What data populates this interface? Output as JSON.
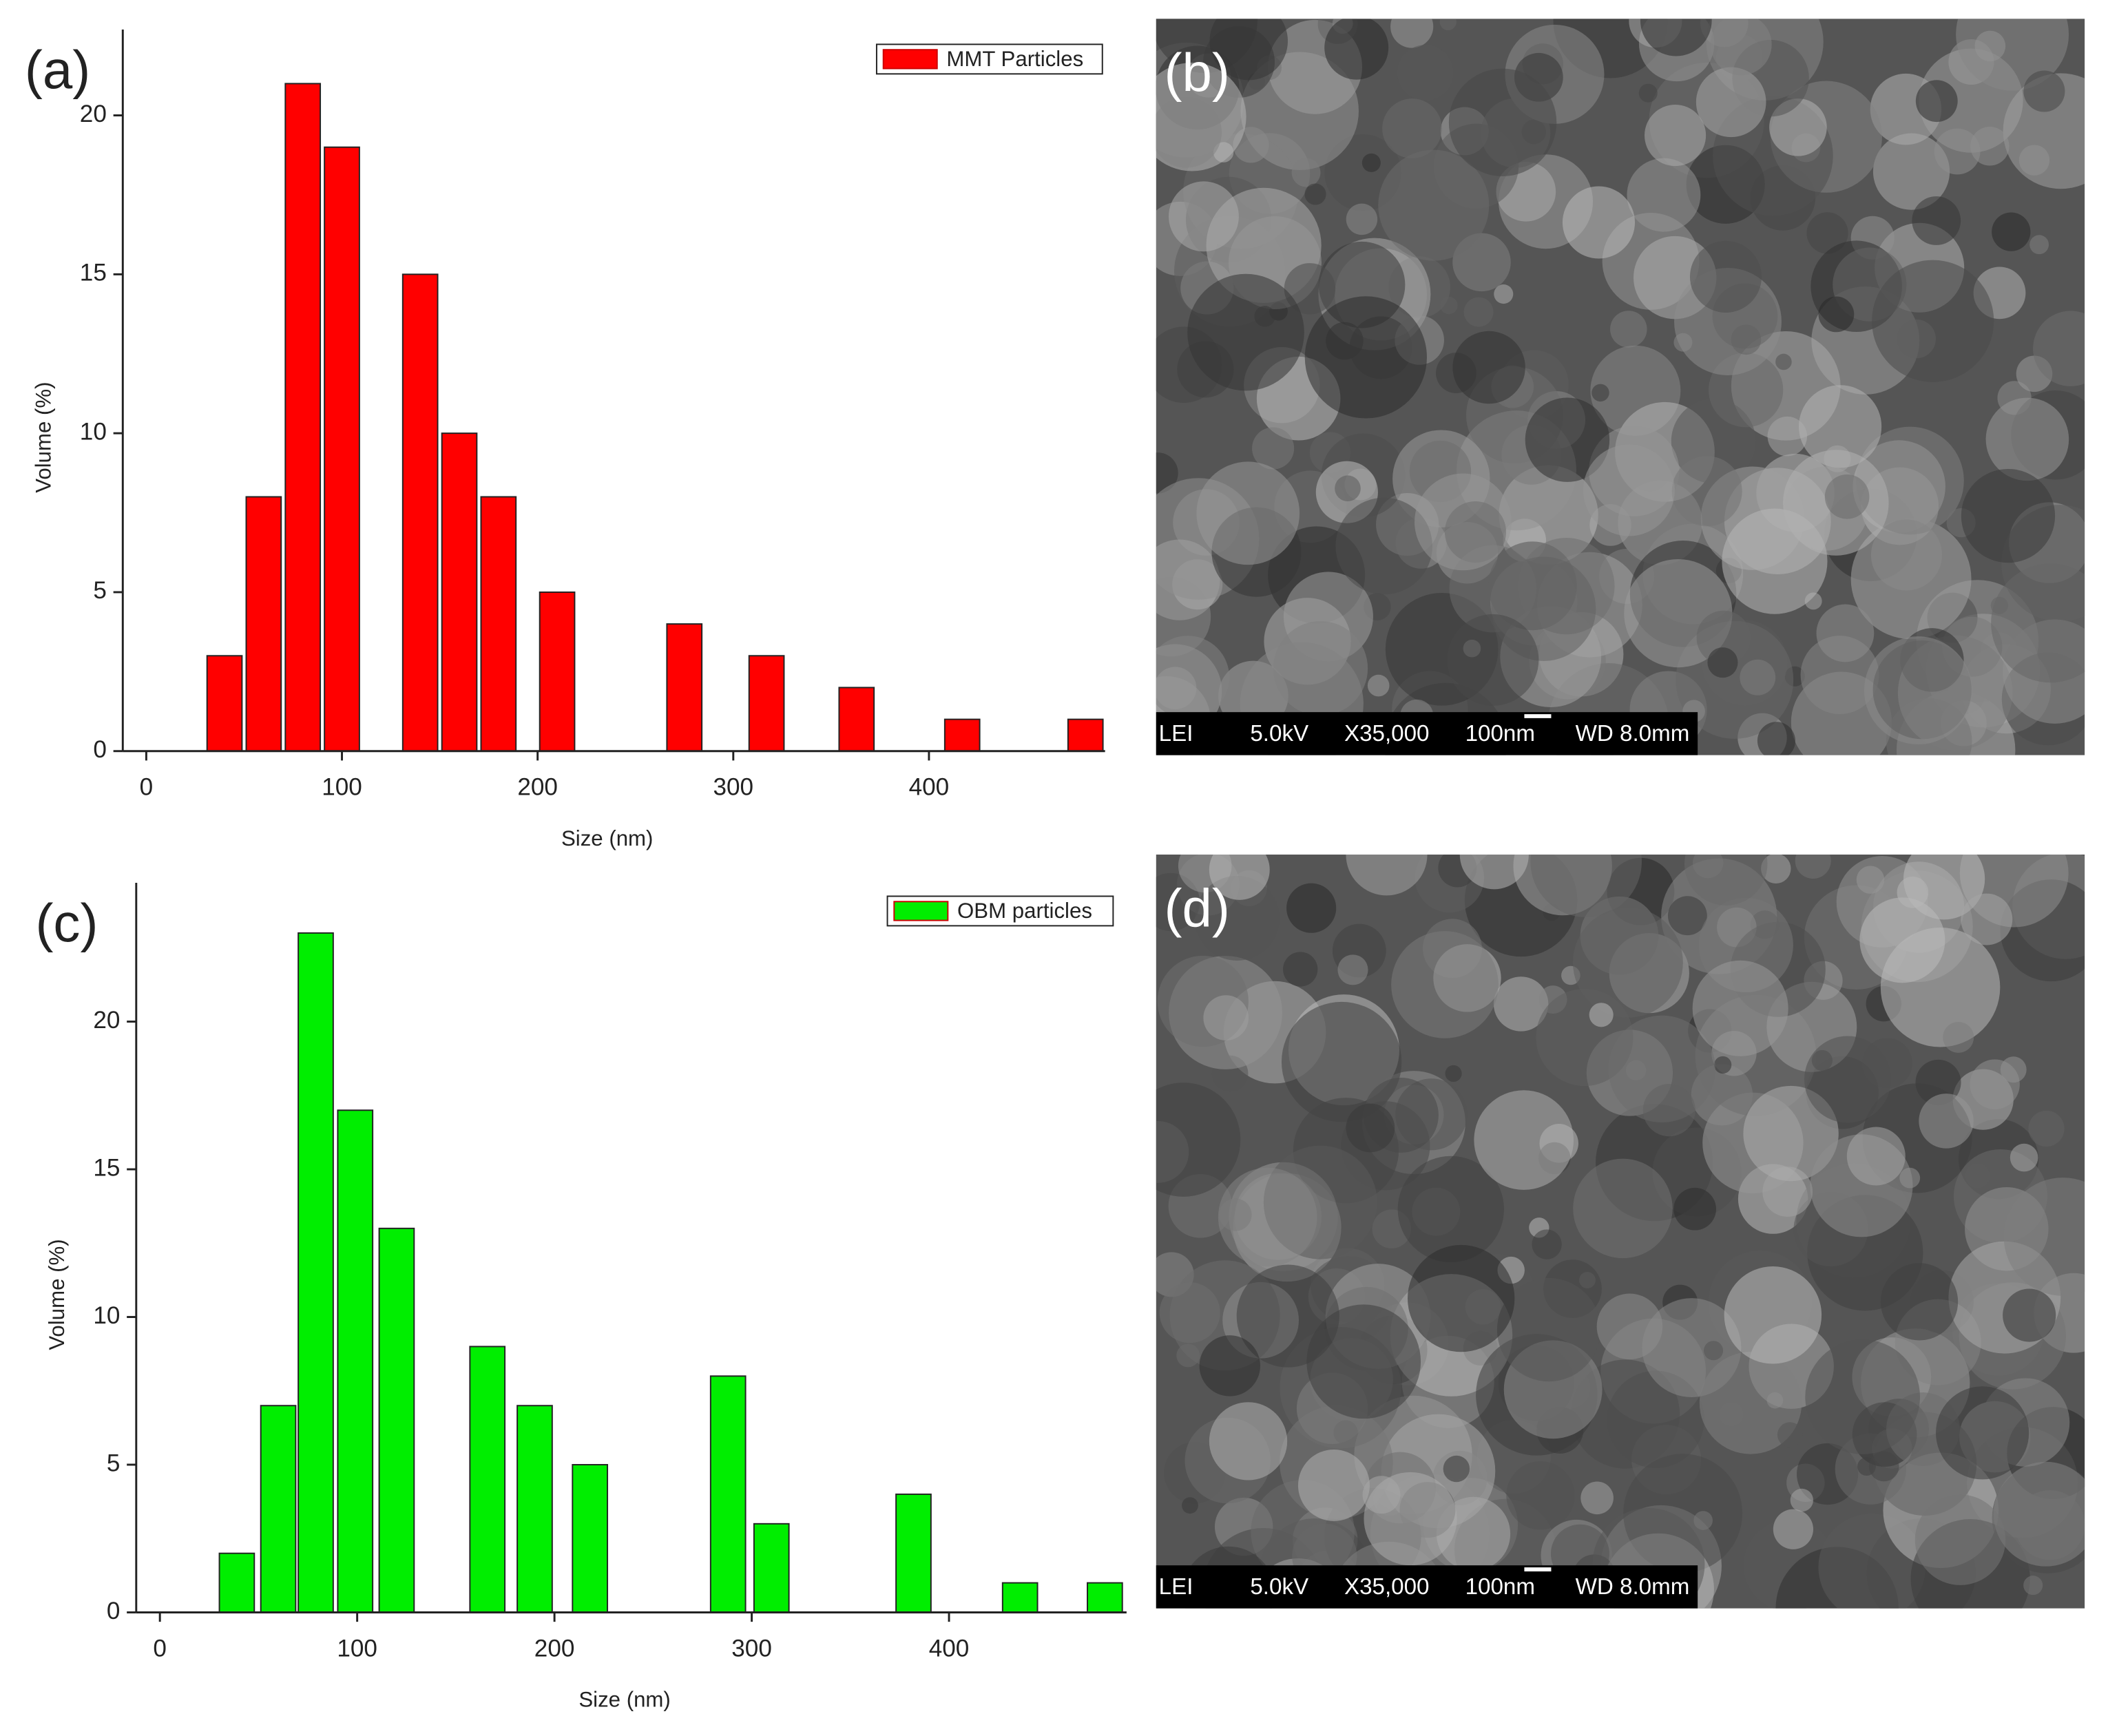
{
  "chart_data": [
    {
      "type": "bar",
      "panel_label": "(a)",
      "xlabel": "Size (nm)",
      "ylabel": "Volume (%)",
      "x": [
        40,
        60,
        80,
        100,
        140,
        160,
        180,
        210,
        275,
        317,
        363,
        417,
        480
      ],
      "series": [
        {
          "name": "MMT Particles",
          "color": "#ff0000",
          "values": [
            3,
            8,
            21,
            19,
            15,
            10,
            8,
            5,
            4,
            3,
            2,
            1,
            1
          ]
        }
      ],
      "xlim": [
        -12,
        490
      ],
      "xticks": [
        0,
        100,
        200,
        300,
        400
      ],
      "ylim": [
        0,
        22.7
      ],
      "yticks": [
        0,
        5,
        10,
        15,
        20
      ],
      "legend": "upper-right"
    },
    {
      "type": "bar",
      "panel_label": "(c)",
      "xlabel": "Size (nm)",
      "ylabel": "Volume (%)",
      "x": [
        39,
        60,
        79,
        99,
        120,
        166,
        190,
        218,
        288,
        310,
        382,
        436,
        479
      ],
      "series": [
        {
          "name": "OBM particles",
          "color": "#00ee00",
          "values": [
            2,
            7,
            23,
            17,
            13,
            9,
            7,
            5,
            8,
            3,
            4,
            1,
            1
          ]
        }
      ],
      "xlim": [
        -12,
        490
      ],
      "xticks": [
        0,
        100,
        200,
        300,
        400
      ],
      "ylim": [
        0,
        24.7
      ],
      "yticks": [
        0,
        5,
        10,
        15,
        20
      ],
      "legend": "upper-right"
    }
  ],
  "images": [
    {
      "label": "(b)",
      "info": [
        "LEI",
        "5.0kV",
        "X35,000",
        "100nm",
        "WD 8.0mm"
      ]
    },
    {
      "label": "(d)",
      "info": [
        "LEI",
        "5.0kV",
        "X35,000",
        "100nm",
        "WD 8.0mm"
      ]
    }
  ]
}
